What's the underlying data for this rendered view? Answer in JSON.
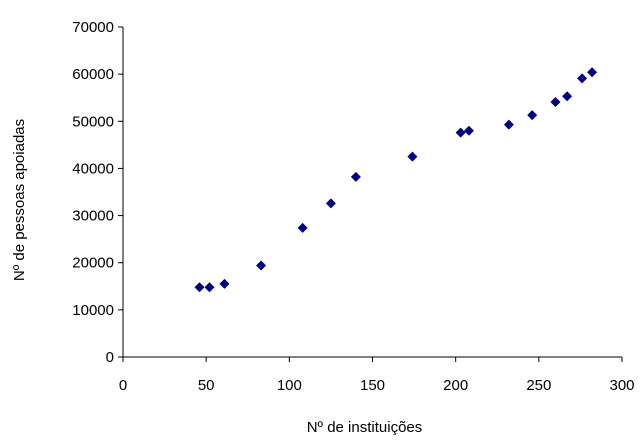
{
  "chart_data": {
    "type": "scatter",
    "title": "",
    "xlabel": "Nº de instituições",
    "ylabel": "Nº de pessoas apoiadas",
    "xlim": [
      0,
      300
    ],
    "ylim": [
      0,
      70000
    ],
    "x_ticks": [
      "0",
      "50",
      "100",
      "150",
      "200",
      "250",
      "300"
    ],
    "y_ticks": [
      "0",
      "10000",
      "20000",
      "30000",
      "40000",
      "50000",
      "60000",
      "70000"
    ],
    "grid": false,
    "legend": "none",
    "marker": "diamond",
    "marker_color": "#000080",
    "series": [
      {
        "points": [
          {
            "x": 46,
            "y": 14800
          },
          {
            "x": 52,
            "y": 14800
          },
          {
            "x": 61,
            "y": 15500
          },
          {
            "x": 83,
            "y": 19400
          },
          {
            "x": 108,
            "y": 27400
          },
          {
            "x": 125,
            "y": 32600
          },
          {
            "x": 140,
            "y": 38200
          },
          {
            "x": 174,
            "y": 42500
          },
          {
            "x": 203,
            "y": 47600
          },
          {
            "x": 208,
            "y": 48000
          },
          {
            "x": 232,
            "y": 49300
          },
          {
            "x": 246,
            "y": 51300
          },
          {
            "x": 260,
            "y": 54100
          },
          {
            "x": 267,
            "y": 55300
          },
          {
            "x": 276,
            "y": 59100
          },
          {
            "x": 282,
            "y": 60400
          }
        ]
      }
    ]
  }
}
